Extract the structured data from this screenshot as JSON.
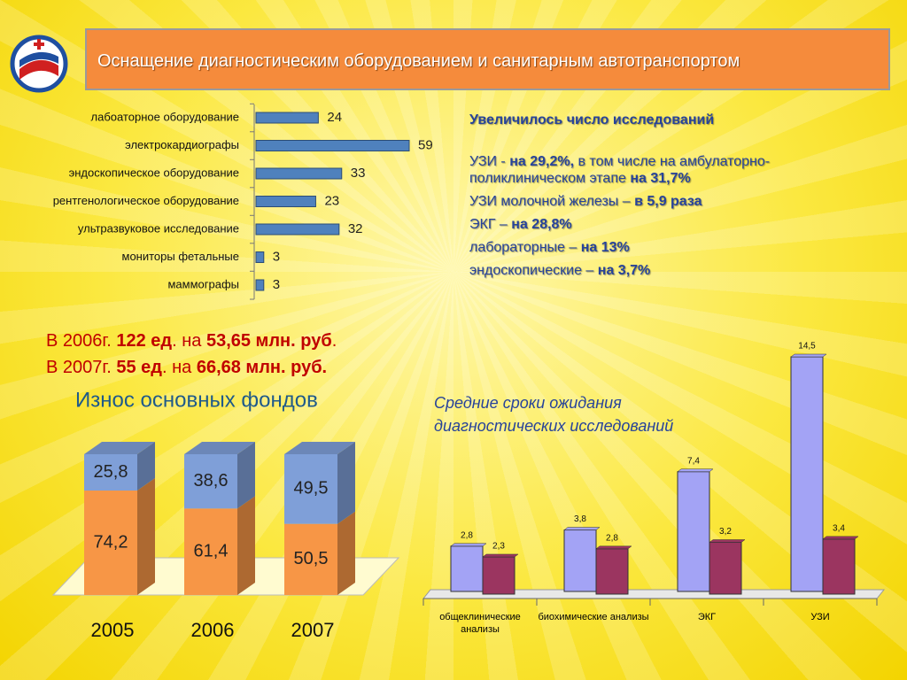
{
  "title": "Оснащение диагностическим оборудованием и санитарным автотранспортом",
  "stats": {
    "heading": "Увеличилось число исследований",
    "lines": [
      [
        {
          "text": "УЗИ  - ",
          "bold": false
        },
        {
          "text": "на 29,2%,",
          "bold": true
        },
        {
          "text": " в том числе на амбулаторно-поликлиническом этапе  ",
          "bold": false
        },
        {
          "text": "на 31,7%",
          "bold": true
        }
      ],
      [
        {
          "text": "УЗИ молочной железы – ",
          "bold": false
        },
        {
          "text": "в 5,9 раза",
          "bold": true
        }
      ],
      [
        {
          "text": "ЭКГ – ",
          "bold": false
        },
        {
          "text": "на 28,8%",
          "bold": true
        }
      ],
      [
        {
          "text": " лабораторные – ",
          "bold": false
        },
        {
          "text": "на 13%",
          "bold": true
        }
      ],
      [
        {
          "text": "эндоскопические – ",
          "bold": false
        },
        {
          "text": "на 3,7%",
          "bold": true
        }
      ]
    ]
  },
  "summary": [
    [
      {
        "text": "В 2006г. ",
        "bold": false
      },
      {
        "text": "122 ед",
        "bold": true
      },
      {
        "text": ". на ",
        "bold": false
      },
      {
        "text": "53,65 млн. руб",
        "bold": true
      },
      {
        "text": ".",
        "bold": false
      }
    ],
    [
      {
        "text": "В 2007г. ",
        "bold": false
      },
      {
        "text": "55 ед",
        "bold": true
      },
      {
        "text": ". на ",
        "bold": false
      },
      {
        "text": "66,68 млн. руб.",
        "bold": true
      }
    ]
  ],
  "chart_data": [
    {
      "type": "hbar",
      "categories": [
        "лабоаторное оборудование",
        "электрокардиографы",
        "эндоскопическое оборудование",
        "рентгенологическое оборудование",
        "ультразвуковое исследование",
        "мониторы фетальные",
        "маммографы"
      ],
      "values": [
        24,
        59,
        33,
        23,
        32,
        3,
        3
      ],
      "color": "#4f81bd"
    },
    {
      "type": "stacked3d",
      "title": "Износ основных фондов",
      "categories": [
        "2005",
        "2006",
        "2007"
      ],
      "series": [
        {
          "color": "#f79646",
          "values": [
            74.2,
            61.4,
            50.5
          ],
          "value_labels": [
            "74,2",
            "61,4",
            "50,5"
          ]
        },
        {
          "color": "#7f9fd8",
          "values": [
            25.8,
            38.6,
            49.5
          ],
          "value_labels": [
            "25,8",
            "38,6",
            "49,5"
          ]
        }
      ]
    },
    {
      "type": "grouped",
      "title": "Средние сроки ожидания диагностических исследований",
      "categories": [
        "общеклинические анализы",
        "биохимические анализы",
        "ЭКГ",
        "УЗИ"
      ],
      "series": [
        {
          "color": "#a3a3f5",
          "values": [
            2.8,
            3.8,
            7.4,
            14.5
          ],
          "value_labels": [
            "2,8",
            "3,8",
            "7,4",
            "14,5"
          ]
        },
        {
          "color": "#9b3560",
          "values": [
            2.3,
            2.8,
            3.2,
            3.4
          ],
          "value_labels": [
            "2,3",
            "2,8",
            "3,2",
            "3,4"
          ]
        }
      ]
    }
  ]
}
